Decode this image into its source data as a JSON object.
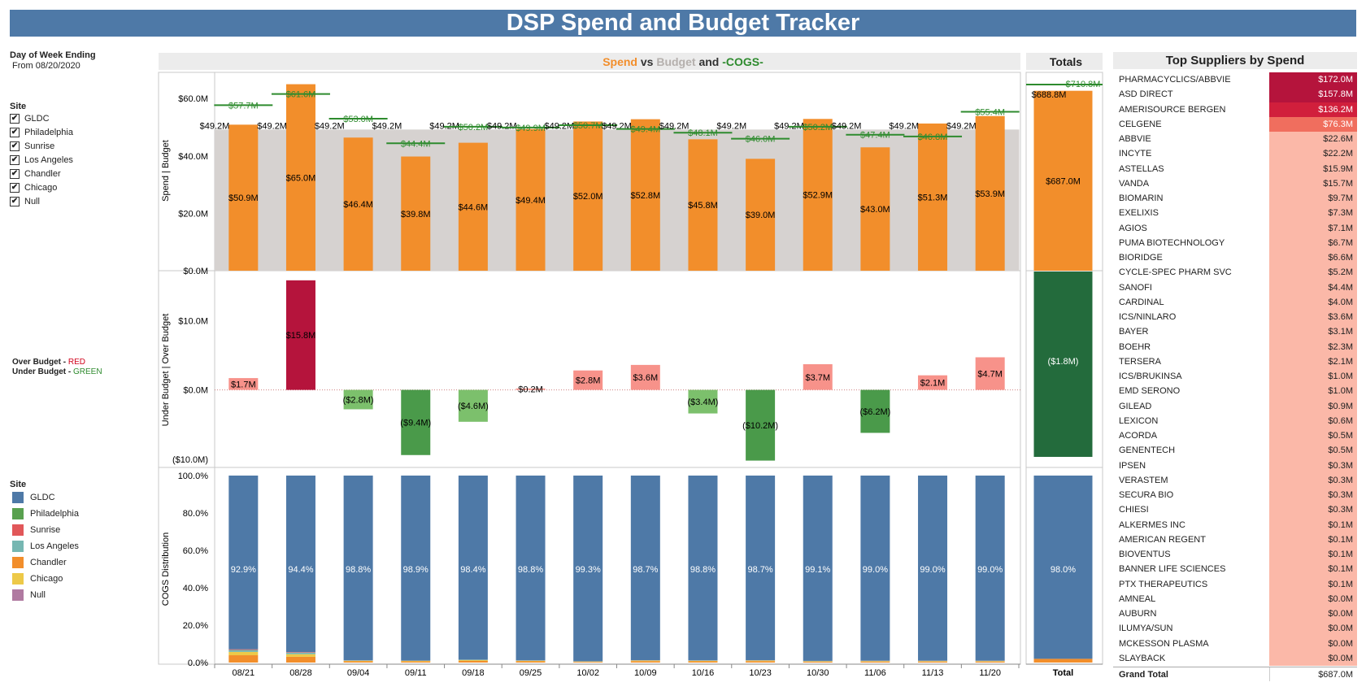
{
  "title": "DSP Spend and Budget Tracker",
  "filters": {
    "dow_label": "Day of Week Ending",
    "from_label": "From 08/20/2020",
    "site_label": "Site",
    "sites": [
      "GLDC",
      "Philadelphia",
      "Sunrise",
      "Los Angeles",
      "Chandler",
      "Chicago",
      "Null"
    ],
    "check_mark": "✔"
  },
  "budget_legend": {
    "over": "Over Budget - ",
    "over_word": "RED",
    "under": "Under Budget - ",
    "under_word": "GREEN"
  },
  "site_legend": {
    "label": "Site",
    "items": [
      {
        "name": "GLDC",
        "color": "#4e79a7"
      },
      {
        "name": "Philadelphia",
        "color": "#59a14f"
      },
      {
        "name": "Sunrise",
        "color": "#e15759"
      },
      {
        "name": "Los Angeles",
        "color": "#76b7b2"
      },
      {
        "name": "Chandler",
        "color": "#f28e2b"
      },
      {
        "name": "Chicago",
        "color": "#edc948"
      },
      {
        "name": "Null",
        "color": "#b07aa1"
      }
    ]
  },
  "colors": {
    "spend": "#f28e2b",
    "budget": "#d6d2d0",
    "cogs": "#2e8b2e",
    "gldc": "#4e79a7",
    "over_dark": "#b5143c",
    "over_light": "#f7928a",
    "under_dark": "#4a9a4a",
    "under_light": "#7cc06c",
    "under_total": "#236b3c"
  },
  "chart_data": [
    {
      "type": "bar",
      "panel": "spend-vs-budget",
      "header_parts": [
        "Spend",
        " vs ",
        "Budget",
        " and ",
        "-COGS-"
      ],
      "ylabel": "Spend   |   Budget",
      "yticks": [
        "$60.0M",
        "$40.0M",
        "$20.0M",
        "$0.0M"
      ],
      "ytick_values": [
        60,
        40,
        20,
        0
      ],
      "ylim": [
        0,
        68
      ],
      "categories": [
        "08/21",
        "08/28",
        "09/04",
        "09/11",
        "09/18",
        "09/25",
        "10/02",
        "10/09",
        "10/16",
        "10/23",
        "10/30",
        "11/06",
        "11/13",
        "11/20"
      ],
      "series": [
        {
          "name": "Spend",
          "values": [
            50.9,
            65.0,
            46.4,
            39.8,
            44.6,
            49.4,
            52.0,
            52.8,
            45.8,
            39.0,
            52.9,
            43.0,
            51.3,
            53.9
          ],
          "labels": [
            "$50.9M",
            "$65.0M",
            "$46.4M",
            "$39.8M",
            "$44.6M",
            "$49.4M",
            "$52.0M",
            "$52.8M",
            "$45.8M",
            "$39.0M",
            "$52.9M",
            "$43.0M",
            "$51.3M",
            "$53.9M"
          ]
        },
        {
          "name": "Budget",
          "values": [
            49.2,
            49.2,
            49.2,
            49.2,
            49.2,
            49.2,
            49.2,
            49.2,
            49.2,
            49.2,
            49.2,
            49.2,
            49.2,
            49.2
          ],
          "labels": [
            "$49.2M",
            "$49.2M",
            "$49.2M",
            "$49.2M",
            "$49.2M",
            "$49.2M",
            "$49.2M",
            "$49.2M",
            "$49.2M",
            "$49.2M",
            "$49.2M",
            "$49.2M",
            "$49.2M",
            "$49.2M"
          ]
        },
        {
          "name": "COGS",
          "values": [
            57.7,
            61.6,
            53.0,
            44.4,
            50.2,
            49.9,
            50.7,
            49.4,
            48.1,
            46.0,
            50.2,
            47.4,
            46.8,
            55.4
          ],
          "labels": [
            "$57.7M",
            "$61.6M",
            "$53.0M",
            "$44.4M",
            "$50.2M",
            "$49.9M",
            "$50.7M",
            "$49.4M",
            "$48.1M",
            "$46.0M",
            "$50.2M",
            "$47.4M",
            "$46.8M",
            "$55.4M"
          ]
        }
      ]
    },
    {
      "type": "bar",
      "panel": "over-under-budget",
      "ylabel": "Under Budget   |   Over Budget",
      "yticks": [
        "$10.0M",
        "$0.0M",
        "($10.0M)"
      ],
      "ytick_values": [
        10,
        0,
        -10
      ],
      "ylim": [
        -10.6,
        16.6
      ],
      "categories": [
        "08/21",
        "08/28",
        "09/04",
        "09/11",
        "09/18",
        "09/25",
        "10/02",
        "10/09",
        "10/16",
        "10/23",
        "10/30",
        "11/06",
        "11/13",
        "11/20"
      ],
      "values": [
        1.7,
        15.8,
        -2.8,
        -9.4,
        -4.6,
        0.2,
        2.8,
        3.6,
        -3.4,
        -10.2,
        3.7,
        -6.2,
        2.1,
        4.7
      ],
      "labels": [
        "$1.7M",
        "$15.8M",
        "($2.8M)",
        "($9.4M)",
        "($4.6M)",
        "$0.2M",
        "$2.8M",
        "$3.6M",
        "($3.4M)",
        "($10.2M)",
        "$3.7M",
        "($6.2M)",
        "$2.1M",
        "$4.7M"
      ]
    },
    {
      "type": "bar",
      "panel": "cogs-distribution",
      "ylabel": "COGS Distribution",
      "yticks": [
        "100.0%",
        "80.0%",
        "60.0%",
        "40.0%",
        "20.0%",
        "0.0%"
      ],
      "ytick_values": [
        100,
        80,
        60,
        40,
        20,
        0
      ],
      "ylim": [
        0,
        100
      ],
      "categories": [
        "08/21",
        "08/28",
        "09/04",
        "09/11",
        "09/18",
        "09/25",
        "10/02",
        "10/09",
        "10/16",
        "10/23",
        "10/30",
        "11/06",
        "11/13",
        "11/20"
      ],
      "gldc_values": [
        92.9,
        94.4,
        98.8,
        98.9,
        98.4,
        98.8,
        99.3,
        98.7,
        98.8,
        98.7,
        99.1,
        99.0,
        99.0,
        99.0
      ],
      "labels": [
        "92.9%",
        "94.4%",
        "98.8%",
        "98.9%",
        "98.4%",
        "98.8%",
        "99.3%",
        "98.7%",
        "98.8%",
        "98.7%",
        "99.1%",
        "99.0%",
        "99.0%",
        "99.0%"
      ]
    },
    {
      "type": "bar",
      "panel": "totals",
      "header": "Totals",
      "category": "Total",
      "spend": 687.0,
      "spend_label": "$687.0M",
      "budget": 688.8,
      "budget_label": "$688.8M",
      "cogs": 710.8,
      "cogs_label": "$710.8M",
      "variance": -1.8,
      "variance_label": "($1.8M)",
      "gldc_pct": 98.0,
      "gldc_label": "98.0%"
    },
    {
      "type": "table",
      "panel": "top-suppliers",
      "header": "Top Suppliers by Spend",
      "rows": [
        {
          "name": "PHARMACYCLICS/ABBVIE",
          "value": 172.0,
          "label": "$172.0M"
        },
        {
          "name": "ASD DIRECT",
          "value": 157.8,
          "label": "$157.8M"
        },
        {
          "name": "AMERISOURCE BERGEN",
          "value": 136.2,
          "label": "$136.2M"
        },
        {
          "name": "CELGENE",
          "value": 76.3,
          "label": "$76.3M"
        },
        {
          "name": "ABBVIE",
          "value": 22.6,
          "label": "$22.6M"
        },
        {
          "name": "INCYTE",
          "value": 22.2,
          "label": "$22.2M"
        },
        {
          "name": "ASTELLAS",
          "value": 15.9,
          "label": "$15.9M"
        },
        {
          "name": "VANDA",
          "value": 15.7,
          "label": "$15.7M"
        },
        {
          "name": "BIOMARIN",
          "value": 9.7,
          "label": "$9.7M"
        },
        {
          "name": "EXELIXIS",
          "value": 7.3,
          "label": "$7.3M"
        },
        {
          "name": "AGIOS",
          "value": 7.1,
          "label": "$7.1M"
        },
        {
          "name": "PUMA BIOTECHNOLOGY",
          "value": 6.7,
          "label": "$6.7M"
        },
        {
          "name": "BIORIDGE",
          "value": 6.6,
          "label": "$6.6M"
        },
        {
          "name": "CYCLE-SPEC PHARM SVC",
          "value": 5.2,
          "label": "$5.2M"
        },
        {
          "name": "SANOFI",
          "value": 4.4,
          "label": "$4.4M"
        },
        {
          "name": "CARDINAL",
          "value": 4.0,
          "label": "$4.0M"
        },
        {
          "name": "ICS/NINLARO",
          "value": 3.6,
          "label": "$3.6M"
        },
        {
          "name": "BAYER",
          "value": 3.1,
          "label": "$3.1M"
        },
        {
          "name": "BOEHR",
          "value": 2.3,
          "label": "$2.3M"
        },
        {
          "name": "TERSERA",
          "value": 2.1,
          "label": "$2.1M"
        },
        {
          "name": "ICS/BRUKINSA",
          "value": 1.0,
          "label": "$1.0M"
        },
        {
          "name": "EMD SERONO",
          "value": 1.0,
          "label": "$1.0M"
        },
        {
          "name": "GILEAD",
          "value": 0.9,
          "label": "$0.9M"
        },
        {
          "name": "LEXICON",
          "value": 0.6,
          "label": "$0.6M"
        },
        {
          "name": "ACORDA",
          "value": 0.5,
          "label": "$0.5M"
        },
        {
          "name": "GENENTECH",
          "value": 0.5,
          "label": "$0.5M"
        },
        {
          "name": "IPSEN",
          "value": 0.3,
          "label": "$0.3M"
        },
        {
          "name": "VERASTEM",
          "value": 0.3,
          "label": "$0.3M"
        },
        {
          "name": "SECURA BIO",
          "value": 0.3,
          "label": "$0.3M"
        },
        {
          "name": "CHIESI",
          "value": 0.3,
          "label": "$0.3M"
        },
        {
          "name": "ALKERMES INC",
          "value": 0.1,
          "label": "$0.1M"
        },
        {
          "name": "AMERICAN REGENT",
          "value": 0.1,
          "label": "$0.1M"
        },
        {
          "name": "BIOVENTUS",
          "value": 0.1,
          "label": "$0.1M"
        },
        {
          "name": "BANNER LIFE SCIENCES",
          "value": 0.1,
          "label": "$0.1M"
        },
        {
          "name": "PTX THERAPEUTICS",
          "value": 0.1,
          "label": "$0.1M"
        },
        {
          "name": "AMNEAL",
          "value": 0.0,
          "label": "$0.0M"
        },
        {
          "name": "AUBURN",
          "value": 0.0,
          "label": "$0.0M"
        },
        {
          "name": "ILUMYA/SUN",
          "value": 0.0,
          "label": "$0.0M"
        },
        {
          "name": "MCKESSON PLASMA",
          "value": 0.0,
          "label": "$0.0M"
        },
        {
          "name": "SLAYBACK",
          "value": 0.0,
          "label": "$0.0M"
        }
      ],
      "total_label": "Grand Total",
      "total_value": "$687.0M"
    }
  ]
}
